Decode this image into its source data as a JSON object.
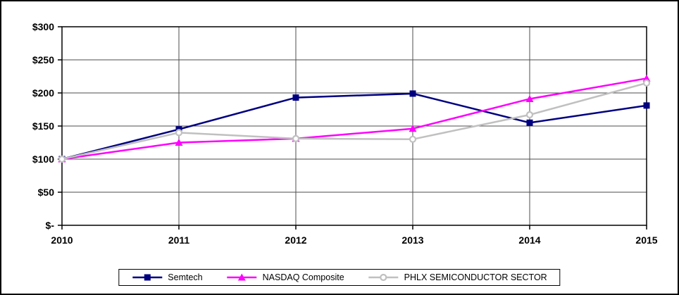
{
  "chart_data": {
    "type": "line",
    "title": "",
    "x_labels": [
      "2010",
      "2011",
      "2012",
      "2013",
      "2014",
      "2015"
    ],
    "ylim": [
      0,
      300
    ],
    "ytick_step": 50,
    "ytick_labels": [
      "$-",
      "$50",
      "$100",
      "$150",
      "$200",
      "$250",
      "$300"
    ],
    "grid": true,
    "legend_position": "bottom",
    "series": [
      {
        "name": "Semtech",
        "color": "#000080",
        "marker": "square",
        "values": [
          100,
          145,
          193,
          199,
          155,
          181
        ]
      },
      {
        "name": "NASDAQ Composite",
        "color": "#FF00FF",
        "marker": "triangle",
        "values": [
          100,
          125,
          131,
          146,
          191,
          222
        ]
      },
      {
        "name": "PHLX SEMICONDUCTOR SECTOR",
        "color": "#C0C0C0",
        "marker": "circle",
        "values": [
          100,
          140,
          131,
          130,
          167,
          215
        ]
      }
    ]
  },
  "colors": {
    "background": "#FFFFFF",
    "plot_border": "#000000",
    "grid": "#4d4d4d",
    "axis_text": "#000000",
    "frame_border": "#000000"
  }
}
